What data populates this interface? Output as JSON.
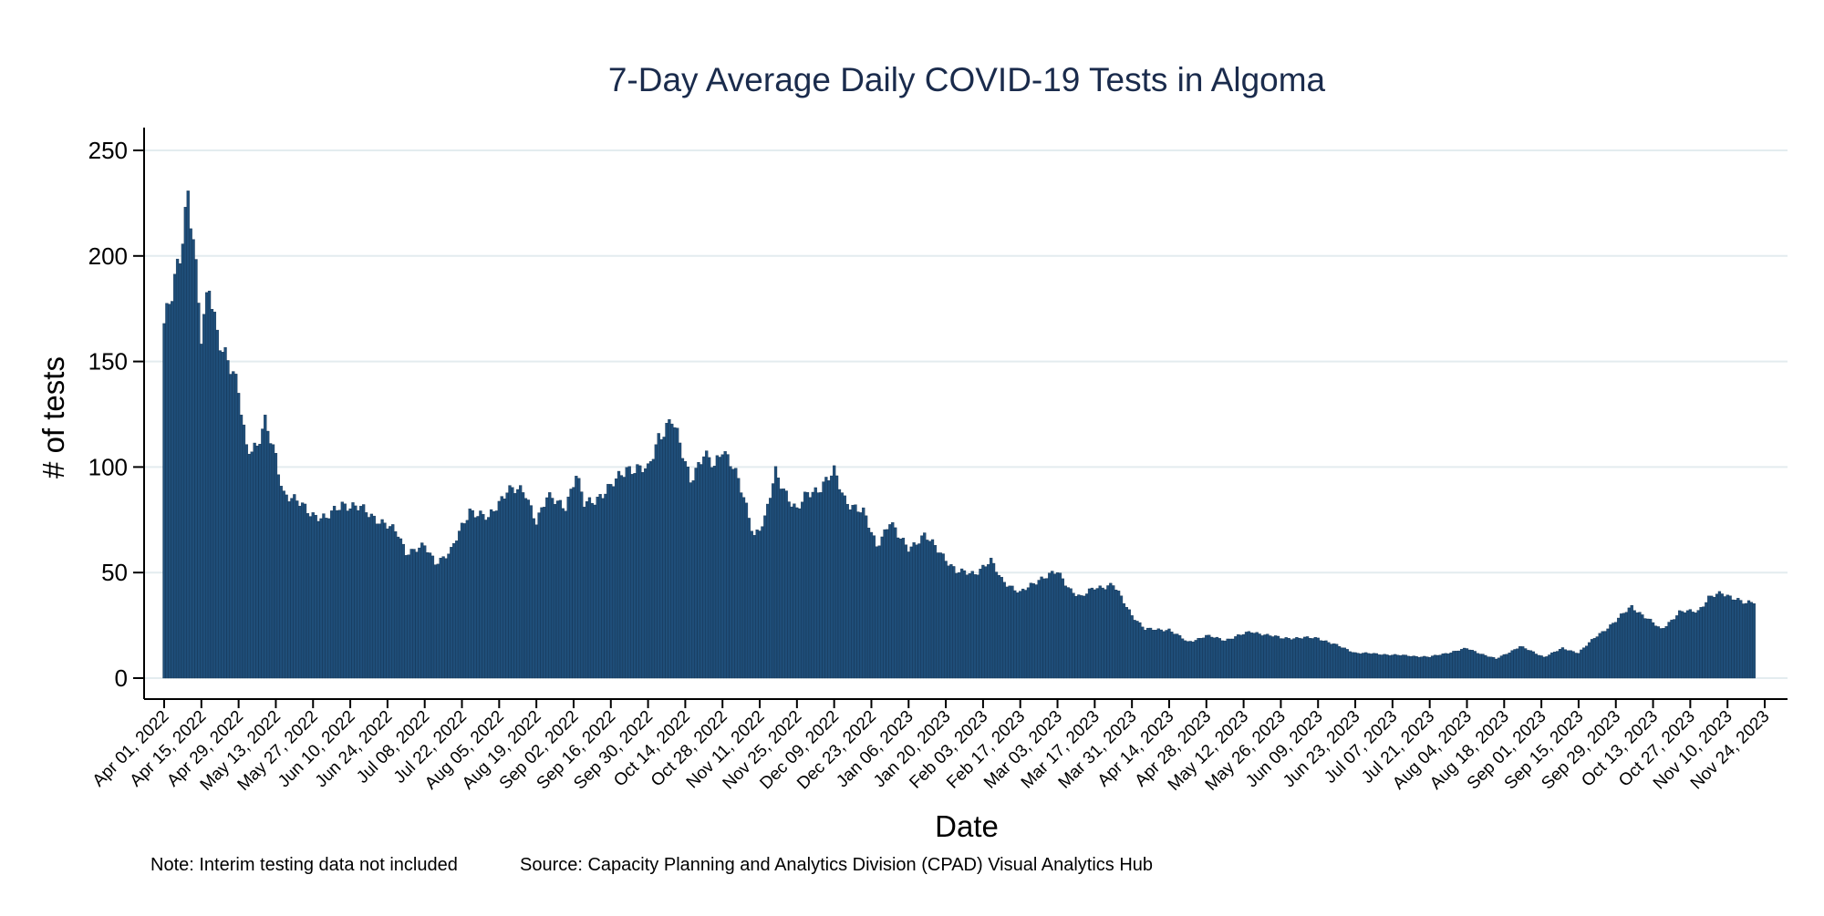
{
  "chart_data": {
    "type": "bar",
    "title": "7-Day Average Daily COVID-19 Tests in Algoma",
    "xlabel": "Date",
    "ylabel": "# of tests",
    "ylim": [
      0,
      260
    ],
    "yticks": [
      0,
      50,
      100,
      150,
      200,
      250
    ],
    "x_start": "2022-04-01",
    "x_end": "2023-11-24",
    "x_tick_labels": [
      "Apr 01, 2022",
      "Apr 15, 2022",
      "Apr 29, 2022",
      "May 13, 2022",
      "May 27, 2022",
      "Jun 10, 2022",
      "Jun 24, 2022",
      "Jul 08, 2022",
      "Jul 22, 2022",
      "Aug 05, 2022",
      "Aug 19, 2022",
      "Sep 02, 2022",
      "Sep 16, 2022",
      "Sep 30, 2022",
      "Oct 14, 2022",
      "Oct 28, 2022",
      "Nov 11, 2022",
      "Nov 25, 2022",
      "Dec 09, 2022",
      "Dec 23, 2022",
      "Jan 06, 2023",
      "Jan 20, 2023",
      "Feb 03, 2023",
      "Feb 17, 2023",
      "Mar 03, 2023",
      "Mar 17, 2023",
      "Mar 31, 2023",
      "Apr 14, 2023",
      "Apr 28, 2023",
      "May 12, 2023",
      "May 26, 2023",
      "Jun 09, 2023",
      "Jun 23, 2023",
      "Jul 07, 2023",
      "Jul 21, 2023",
      "Aug 04, 2023",
      "Aug 18, 2023",
      "Sep 01, 2023",
      "Sep 15, 2023",
      "Sep 29, 2023",
      "Oct 13, 2023",
      "Oct 27, 2023",
      "Nov 10, 2023",
      "Nov 24, 2023"
    ],
    "series": [
      {
        "points": [
          [
            "2022-04-01",
            168
          ],
          [
            "2022-04-04",
            180
          ],
          [
            "2022-04-07",
            200
          ],
          [
            "2022-04-10",
            232
          ],
          [
            "2022-04-12",
            210
          ],
          [
            "2022-04-15",
            160
          ],
          [
            "2022-04-18",
            185
          ],
          [
            "2022-04-21",
            165
          ],
          [
            "2022-04-25",
            150
          ],
          [
            "2022-04-29",
            135
          ],
          [
            "2022-05-02",
            110
          ],
          [
            "2022-05-06",
            110
          ],
          [
            "2022-05-09",
            120
          ],
          [
            "2022-05-13",
            105
          ],
          [
            "2022-05-16",
            88
          ],
          [
            "2022-05-20",
            84
          ],
          [
            "2022-05-27",
            78
          ],
          [
            "2022-06-01",
            75
          ],
          [
            "2022-06-07",
            83
          ],
          [
            "2022-06-14",
            80
          ],
          [
            "2022-06-21",
            75
          ],
          [
            "2022-06-28",
            68
          ],
          [
            "2022-07-01",
            60
          ],
          [
            "2022-07-08",
            62
          ],
          [
            "2022-07-12",
            55
          ],
          [
            "2022-07-18",
            60
          ],
          [
            "2022-07-25",
            80
          ],
          [
            "2022-08-01",
            75
          ],
          [
            "2022-08-08",
            90
          ],
          [
            "2022-08-15",
            87
          ],
          [
            "2022-08-19",
            75
          ],
          [
            "2022-08-23",
            85
          ],
          [
            "2022-08-30",
            82
          ],
          [
            "2022-09-03",
            96
          ],
          [
            "2022-09-06",
            82
          ],
          [
            "2022-09-10",
            85
          ],
          [
            "2022-09-16",
            90
          ],
          [
            "2022-09-22",
            100
          ],
          [
            "2022-09-30",
            98
          ],
          [
            "2022-10-04",
            115
          ],
          [
            "2022-10-09",
            122
          ],
          [
            "2022-10-12",
            110
          ],
          [
            "2022-10-16",
            95
          ],
          [
            "2022-10-21",
            105
          ],
          [
            "2022-10-25",
            100
          ],
          [
            "2022-10-28",
            110
          ],
          [
            "2022-11-01",
            100
          ],
          [
            "2022-11-05",
            85
          ],
          [
            "2022-11-09",
            68
          ],
          [
            "2022-11-13",
            75
          ],
          [
            "2022-11-17",
            97
          ],
          [
            "2022-11-21",
            88
          ],
          [
            "2022-11-25",
            79
          ],
          [
            "2022-11-29",
            87
          ],
          [
            "2022-12-03",
            90
          ],
          [
            "2022-12-09",
            97
          ],
          [
            "2022-12-13",
            85
          ],
          [
            "2022-12-20",
            78
          ],
          [
            "2022-12-25",
            63
          ],
          [
            "2022-12-30",
            74
          ],
          [
            "2023-01-02",
            67
          ],
          [
            "2023-01-06",
            62
          ],
          [
            "2023-01-12",
            67
          ],
          [
            "2023-01-18",
            60
          ],
          [
            "2023-01-24",
            50
          ],
          [
            "2023-01-31",
            50
          ],
          [
            "2023-02-06",
            55
          ],
          [
            "2023-02-10",
            47
          ],
          [
            "2023-02-17",
            40
          ],
          [
            "2023-02-24",
            47
          ],
          [
            "2023-03-03",
            50
          ],
          [
            "2023-03-08",
            42
          ],
          [
            "2023-03-12",
            38
          ],
          [
            "2023-03-17",
            43
          ],
          [
            "2023-03-24",
            44
          ],
          [
            "2023-03-31",
            30
          ],
          [
            "2023-04-05",
            23
          ],
          [
            "2023-04-14",
            23
          ],
          [
            "2023-04-21",
            17
          ],
          [
            "2023-04-28",
            20
          ],
          [
            "2023-05-05",
            18
          ],
          [
            "2023-05-15",
            22
          ],
          [
            "2023-05-26",
            19
          ],
          [
            "2023-06-09",
            19
          ],
          [
            "2023-06-23",
            12
          ],
          [
            "2023-07-07",
            11
          ],
          [
            "2023-07-21",
            10
          ],
          [
            "2023-08-04",
            14
          ],
          [
            "2023-08-15",
            9
          ],
          [
            "2023-08-24",
            15
          ],
          [
            "2023-09-02",
            10
          ],
          [
            "2023-09-09",
            14
          ],
          [
            "2023-09-15",
            12
          ],
          [
            "2023-09-22",
            20
          ],
          [
            "2023-09-29",
            27
          ],
          [
            "2023-10-05",
            34
          ],
          [
            "2023-10-09",
            30
          ],
          [
            "2023-10-16",
            23
          ],
          [
            "2023-10-23",
            31
          ],
          [
            "2023-10-30",
            32
          ],
          [
            "2023-11-03",
            38
          ],
          [
            "2023-11-08",
            40
          ],
          [
            "2023-11-13",
            38
          ],
          [
            "2023-11-17",
            35
          ],
          [
            "2023-11-20",
            36
          ]
        ]
      }
    ],
    "grid": "horizontal",
    "bar_color": "#1f4e79"
  },
  "footnotes": {
    "note": "Note: Interim testing data not included",
    "source": "Source: Capacity Planning and Analytics Division (CPAD) Visual Analytics Hub"
  }
}
